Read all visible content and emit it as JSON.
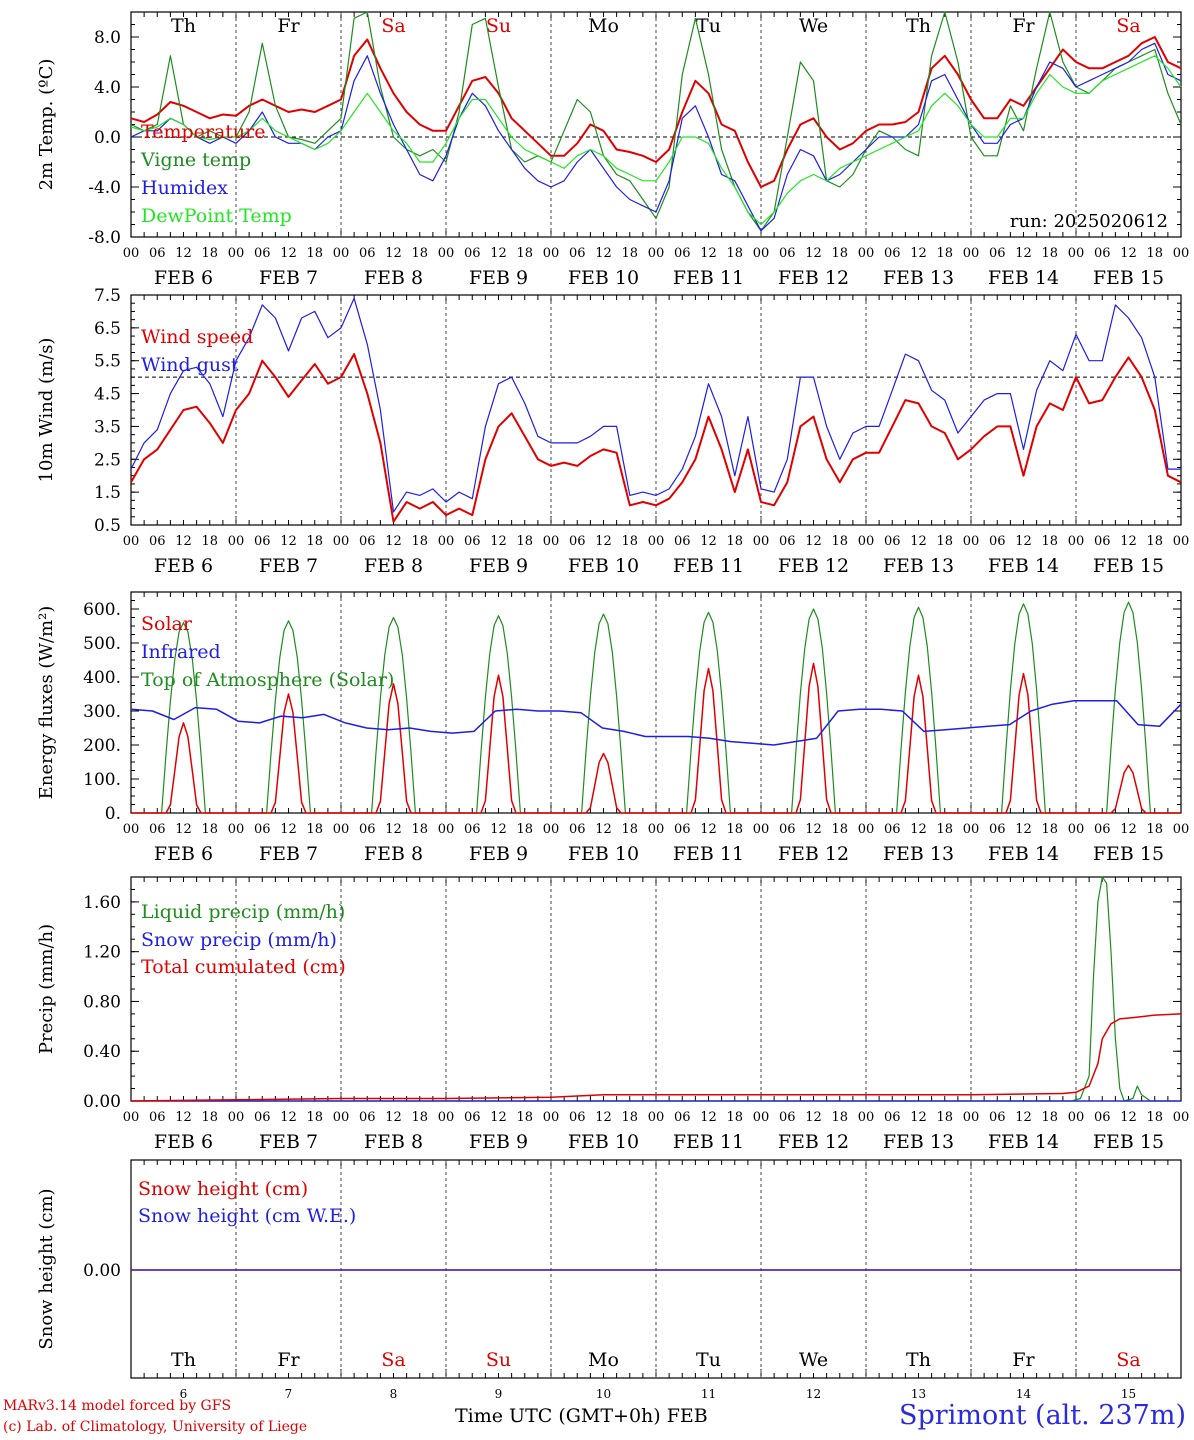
{
  "run_label": "run: 2025020612",
  "colors": {
    "red": "#e00000",
    "green": "#1e8c1e",
    "blue": "#1e1ee6",
    "lime": "#22e622",
    "grey": "#666666"
  },
  "day_names": [
    "Th",
    "Fr",
    "Sa",
    "Su",
    "Mo",
    "Tu",
    "We",
    "Th",
    "Fr",
    "Sa"
  ],
  "weekend_flags": [
    false,
    false,
    true,
    true,
    false,
    false,
    false,
    false,
    false,
    true
  ],
  "date_labels": [
    "FEB  6",
    "FEB  7",
    "FEB  8",
    "FEB  9",
    "FEB 10",
    "FEB 11",
    "FEB 12",
    "FEB 13",
    "FEB 14",
    "FEB 15"
  ],
  "day_numbers": [
    "6",
    "7",
    "8",
    "9",
    "10",
    "11",
    "12",
    "13",
    "14",
    "15"
  ],
  "hour_labels": [
    "00",
    "06",
    "12",
    "18"
  ],
  "final_hour_label": "00",
  "footer": {
    "credit_line1": "MARv3.14 model forced by GFS",
    "credit_line2": "(c) Lab. of Climatology, University of Liege",
    "x_title": "Time UTC (GMT+0h) FEB",
    "station": "Sprimont (alt. 237m)"
  },
  "chart_data": [
    {
      "id": "temp",
      "type": "line",
      "ylabel": "2m Temp. (ºC)",
      "ylim": [
        -8,
        10
      ],
      "ticks": [
        "-8.0",
        "-4.0",
        "0.0",
        "4.0",
        "8.0"
      ],
      "tick_values": [
        -8,
        -4,
        0,
        4,
        8
      ],
      "ref_line": 0,
      "x_hours": [
        0,
        3,
        6,
        9,
        12,
        15,
        18,
        21,
        24,
        27,
        30,
        33,
        36,
        39,
        42,
        45,
        48,
        51,
        54,
        57,
        60,
        63,
        66,
        69,
        72,
        75,
        78,
        81,
        84,
        87,
        90,
        93,
        96,
        99,
        102,
        105,
        108,
        111,
        114,
        117,
        120,
        123,
        126,
        129,
        132,
        135,
        138,
        141,
        144,
        147,
        150,
        153,
        156,
        159,
        162,
        165,
        168,
        171,
        174,
        177,
        180,
        183,
        186,
        189,
        192,
        195,
        198,
        201,
        204,
        207,
        210,
        213,
        216,
        219,
        222,
        225,
        228,
        231,
        234,
        237,
        240
      ],
      "series": [
        {
          "name": "Temperature",
          "color": "red",
          "width": 2,
          "values": [
            1.5,
            1.2,
            1.8,
            2.8,
            2.5,
            2.0,
            1.5,
            1.8,
            1.7,
            2.5,
            3.0,
            2.5,
            2.0,
            2.2,
            2.0,
            2.5,
            3.0,
            6.5,
            7.8,
            5.5,
            3.5,
            2.0,
            1.0,
            0.5,
            0.5,
            2.5,
            4.5,
            4.8,
            3.5,
            1.5,
            0.5,
            -0.5,
            -1.5,
            -1.5,
            -0.5,
            1.0,
            0.5,
            -1.0,
            -1.2,
            -1.5,
            -2.0,
            -1.0,
            2.0,
            4.5,
            3.5,
            1.0,
            0.5,
            -2.0,
            -4.0,
            -3.5,
            -1.0,
            1.0,
            1.5,
            0.0,
            -1.0,
            -0.5,
            0.5,
            1.0,
            1.0,
            1.2,
            2.0,
            5.5,
            6.5,
            5.0,
            3.0,
            1.5,
            1.5,
            3.0,
            2.5,
            4.0,
            5.5,
            7.0,
            6.0,
            5.5,
            5.5,
            6.0,
            6.5,
            7.5,
            8.0,
            6.0,
            5.5
          ]
        },
        {
          "name": "Vigne temp",
          "color": "green",
          "width": 1.2,
          "values": [
            1.0,
            0.5,
            1.0,
            6.5,
            1.0,
            0.0,
            0.5,
            0.0,
            0.0,
            2.0,
            7.5,
            2.5,
            0.0,
            -0.2,
            -0.5,
            0.5,
            1.5,
            9.5,
            10.0,
            4.0,
            0.0,
            -1.0,
            -1.5,
            -1.0,
            -2.0,
            2.0,
            9.0,
            9.5,
            4.0,
            -1.0,
            -2.0,
            -1.5,
            -2.0,
            0.5,
            3.0,
            2.0,
            -1.5,
            -3.0,
            -3.5,
            -5.0,
            -6.5,
            -4.0,
            5.0,
            9.5,
            5.0,
            -1.0,
            -4.0,
            -6.0,
            -7.5,
            -6.0,
            0.0,
            6.0,
            4.5,
            -3.5,
            -4.0,
            -3.0,
            -1.0,
            0.5,
            0.0,
            -1.0,
            -1.5,
            6.5,
            10.0,
            6.0,
            0.0,
            -1.5,
            -1.5,
            2.5,
            0.5,
            5.5,
            10.0,
            6.0,
            4.0,
            3.5,
            4.5,
            5.5,
            6.0,
            6.5,
            7.0,
            3.5,
            1.0
          ]
        },
        {
          "name": "Humidex",
          "color": "blue",
          "width": 1.2,
          "values": [
            0.0,
            0.5,
            0.5,
            1.5,
            1.0,
            0.0,
            -0.5,
            0.0,
            -0.5,
            0.5,
            2.0,
            0.0,
            -0.5,
            -0.5,
            -1.0,
            0.0,
            0.5,
            4.5,
            6.5,
            3.5,
            1.0,
            -1.0,
            -3.0,
            -3.5,
            -1.5,
            1.5,
            3.5,
            2.5,
            0.5,
            -1.0,
            -2.5,
            -3.5,
            -4.0,
            -3.5,
            -2.0,
            -1.0,
            -2.5,
            -4.0,
            -5.0,
            -5.5,
            -6.0,
            -3.5,
            1.5,
            2.5,
            0.0,
            -3.0,
            -3.5,
            -5.5,
            -7.5,
            -6.5,
            -3.0,
            -1.0,
            -1.5,
            -3.5,
            -3.0,
            -2.0,
            -1.0,
            0.0,
            0.0,
            0.0,
            1.0,
            4.5,
            5.0,
            3.0,
            1.0,
            -0.5,
            -0.5,
            1.0,
            1.5,
            4.0,
            6.0,
            5.5,
            4.0,
            4.5,
            5.0,
            5.5,
            6.0,
            7.0,
            7.5,
            5.0,
            4.5
          ]
        },
        {
          "name": "DewPoint Temp",
          "color": "lime",
          "width": 1.2,
          "values": [
            0.8,
            0.5,
            0.8,
            1.5,
            1.0,
            0.0,
            -0.2,
            0.0,
            0.0,
            0.5,
            1.5,
            0.5,
            0.0,
            -0.5,
            -1.0,
            -0.5,
            0.5,
            2.0,
            3.5,
            2.0,
            0.5,
            -0.5,
            -2.0,
            -2.0,
            -0.5,
            1.5,
            3.0,
            3.0,
            1.5,
            0.0,
            -1.0,
            -1.5,
            -2.0,
            -2.5,
            -1.5,
            -1.0,
            -1.5,
            -2.5,
            -3.0,
            -3.5,
            -3.5,
            -2.0,
            0.0,
            0.0,
            -0.5,
            -2.5,
            -4.0,
            -6.0,
            -7.0,
            -6.0,
            -4.5,
            -3.5,
            -3.0,
            -3.5,
            -2.5,
            -2.0,
            -1.5,
            -1.0,
            -0.5,
            0.0,
            0.5,
            2.5,
            3.5,
            2.5,
            1.0,
            0.0,
            0.0,
            1.5,
            1.5,
            3.5,
            5.0,
            4.0,
            3.5,
            3.5,
            4.5,
            5.0,
            5.5,
            6.0,
            6.5,
            5.5,
            4.0
          ]
        }
      ]
    },
    {
      "id": "wind",
      "type": "line",
      "ylabel": "10m Wind (m/s)",
      "ylim": [
        0.5,
        7.5
      ],
      "ticks": [
        "0.5",
        "1.5",
        "2.5",
        "3.5",
        "4.5",
        "5.5",
        "6.5",
        "7.5"
      ],
      "tick_values": [
        0.5,
        1.5,
        2.5,
        3.5,
        4.5,
        5.5,
        6.5,
        7.5
      ],
      "ref_line": 5,
      "x_hours": [
        0,
        3,
        6,
        9,
        12,
        15,
        18,
        21,
        24,
        27,
        30,
        33,
        36,
        39,
        42,
        45,
        48,
        51,
        54,
        57,
        60,
        63,
        66,
        69,
        72,
        75,
        78,
        81,
        84,
        87,
        90,
        93,
        96,
        99,
        102,
        105,
        108,
        111,
        114,
        117,
        120,
        123,
        126,
        129,
        132,
        135,
        138,
        141,
        144,
        147,
        150,
        153,
        156,
        159,
        162,
        165,
        168,
        171,
        174,
        177,
        180,
        183,
        186,
        189,
        192,
        195,
        198,
        201,
        204,
        207,
        210,
        213,
        216,
        219,
        222,
        225,
        228,
        231,
        234,
        237,
        240
      ],
      "series": [
        {
          "name": "Wind speed",
          "color": "red",
          "width": 2,
          "values": [
            1.8,
            2.5,
            2.8,
            3.4,
            4.0,
            4.1,
            3.6,
            3.0,
            4.0,
            4.5,
            5.5,
            5.0,
            4.4,
            4.9,
            5.4,
            4.8,
            5.0,
            5.7,
            4.5,
            3.0,
            0.6,
            1.2,
            1.0,
            1.2,
            0.8,
            1.0,
            0.8,
            2.5,
            3.5,
            3.9,
            3.2,
            2.5,
            2.3,
            2.4,
            2.3,
            2.6,
            2.8,
            2.7,
            1.1,
            1.2,
            1.1,
            1.3,
            1.8,
            2.5,
            3.8,
            2.8,
            1.5,
            2.8,
            1.2,
            1.1,
            1.8,
            3.5,
            3.8,
            2.5,
            1.8,
            2.5,
            2.7,
            2.7,
            3.5,
            4.3,
            4.2,
            3.5,
            3.3,
            2.5,
            2.8,
            3.2,
            3.5,
            3.5,
            2.0,
            3.5,
            4.2,
            4.0,
            5.0,
            4.2,
            4.3,
            5.0,
            5.6,
            5.0,
            4.0,
            2.0,
            1.8
          ]
        },
        {
          "name": "Wind gust",
          "color": "blue",
          "width": 1.2,
          "values": [
            2.2,
            3.0,
            3.4,
            4.5,
            5.2,
            5.3,
            4.8,
            3.8,
            5.5,
            6.2,
            7.2,
            6.8,
            5.8,
            6.8,
            7.0,
            6.2,
            6.5,
            7.4,
            6.0,
            4.0,
            0.9,
            1.5,
            1.4,
            1.6,
            1.2,
            1.5,
            1.3,
            3.5,
            4.8,
            5.0,
            4.2,
            3.2,
            3.0,
            3.0,
            3.0,
            3.2,
            3.5,
            3.5,
            1.4,
            1.5,
            1.4,
            1.6,
            2.2,
            3.2,
            4.8,
            3.8,
            2.0,
            3.8,
            1.6,
            1.5,
            2.5,
            5.0,
            5.0,
            3.5,
            2.5,
            3.3,
            3.5,
            3.5,
            4.6,
            5.7,
            5.5,
            4.6,
            4.3,
            3.3,
            3.8,
            4.3,
            4.5,
            4.5,
            2.8,
            4.6,
            5.5,
            5.2,
            6.3,
            5.5,
            5.5,
            7.2,
            6.8,
            6.2,
            5.0,
            2.2,
            2.2
          ]
        }
      ]
    },
    {
      "id": "energy",
      "type": "line",
      "ylabel": "Energy fluxes (W/m²)",
      "ylim": [
        0,
        650
      ],
      "ticks": [
        "0.",
        "100.",
        "200.",
        "300.",
        "400.",
        "500.",
        "600."
      ],
      "tick_values": [
        0,
        100,
        200,
        300,
        400,
        500,
        600
      ],
      "ref_line": null,
      "daily_peaks_solar": [
        265,
        350,
        380,
        405,
        175,
        425,
        440,
        405,
        410,
        140
      ],
      "daily_peaks_toa": [
        560,
        565,
        575,
        580,
        585,
        590,
        600,
        605,
        615,
        620
      ],
      "infrared_values": [
        305,
        300,
        275,
        310,
        305,
        270,
        265,
        285,
        280,
        290,
        265,
        250,
        245,
        250,
        240,
        235,
        240,
        300,
        305,
        300,
        300,
        295,
        250,
        240,
        225,
        225,
        225,
        220,
        210,
        205,
        200,
        210,
        220,
        300,
        305,
        305,
        300,
        240,
        245,
        250,
        255,
        260,
        300,
        320,
        330,
        330,
        330,
        260,
        255,
        320
      ],
      "series": [
        {
          "name": "Solar",
          "color": "red",
          "width": 1.5
        },
        {
          "name": "Infrared",
          "color": "blue",
          "width": 1.5
        },
        {
          "name": "Top of Atmosphere (Solar)",
          "color": "green",
          "width": 1.2
        }
      ]
    },
    {
      "id": "precip",
      "type": "line",
      "ylabel": "Precip (mm/h)",
      "ylim": [
        0,
        1.8
      ],
      "ticks": [
        "0.00",
        "0.40",
        "0.80",
        "1.20",
        "1.60"
      ],
      "tick_values": [
        0,
        0.4,
        0.8,
        1.2,
        1.6
      ],
      "ref_line": null,
      "x_hours": [
        0,
        24,
        48,
        72,
        96,
        108,
        120,
        144,
        168,
        192,
        213,
        216,
        219,
        222,
        225,
        228,
        231,
        234,
        237,
        240
      ],
      "series": [
        {
          "name": "Liquid precip (mm/h)",
          "color": "green",
          "width": 1.2,
          "x_hours": [
            0,
            200,
            215,
            217,
            219,
            220,
            221,
            222,
            223,
            224,
            225,
            226,
            227,
            229,
            230,
            231,
            233,
            240
          ],
          "values": [
            0,
            0,
            0,
            0.02,
            0.2,
            1.0,
            1.6,
            1.8,
            1.75,
            1.2,
            0.5,
            0.1,
            0.0,
            0.02,
            0.12,
            0.05,
            0,
            0
          ]
        },
        {
          "name": "Snow precip (mm/h)",
          "color": "blue",
          "width": 1.2,
          "x_hours": [
            0,
            240
          ],
          "values": [
            0,
            0
          ]
        },
        {
          "name": "Total cumulated (cm)",
          "color": "red",
          "width": 1.5,
          "x_hours": [
            0,
            24,
            48,
            72,
            96,
            108,
            120,
            144,
            168,
            192,
            213,
            216,
            219,
            221,
            222,
            224,
            226,
            229,
            234,
            240
          ],
          "values": [
            0.0,
            0.01,
            0.02,
            0.02,
            0.03,
            0.05,
            0.05,
            0.05,
            0.05,
            0.05,
            0.06,
            0.07,
            0.12,
            0.3,
            0.5,
            0.62,
            0.66,
            0.67,
            0.69,
            0.7
          ]
        }
      ]
    },
    {
      "id": "snow",
      "type": "line",
      "ylabel": "Snow height (cm)",
      "ylim": [
        -1,
        1
      ],
      "ticks": [
        "0.00"
      ],
      "tick_values": [
        0
      ],
      "ref_line": null,
      "series": [
        {
          "name": "Snow height (cm)",
          "color": "red",
          "width": 1.5,
          "x_hours": [
            0,
            240
          ],
          "values": [
            0,
            0
          ]
        },
        {
          "name": "Snow height (cm W.E.)",
          "color": "blue",
          "width": 1.2,
          "x_hours": [
            0,
            240
          ],
          "values": [
            0,
            0
          ]
        }
      ]
    }
  ]
}
